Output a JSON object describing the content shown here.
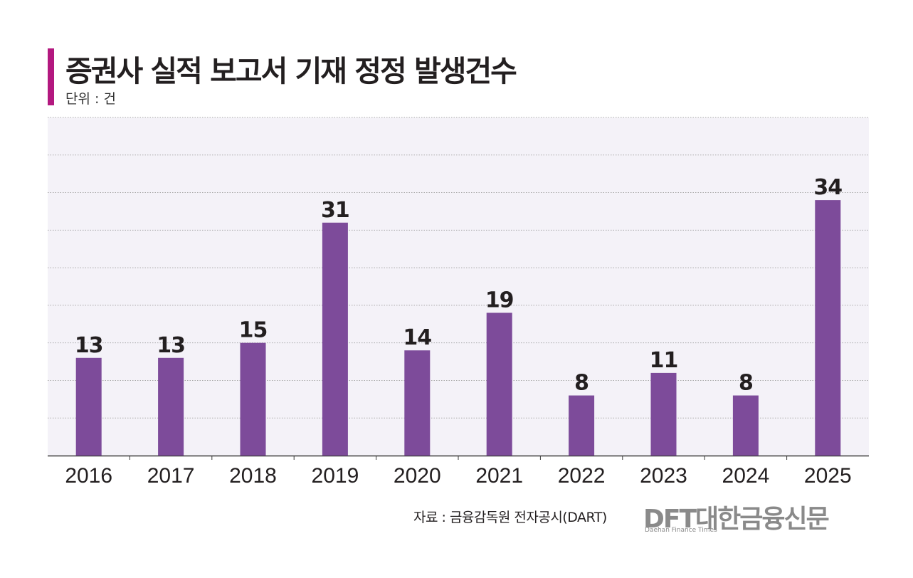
{
  "header": {
    "title": "증권사 실적 보고서 기재 정정 발생건수",
    "unit": "단위 : 건"
  },
  "footer": {
    "source": "자료 : 금융감독원 전자공시(DART)",
    "logo_text": "DFT대한금융신문",
    "logo_subtext": "Daehan Finance Times"
  },
  "colors": {
    "bar": "#7d4b9a",
    "plot_bg": "#f4f2f8",
    "accent": "#b3187f"
  },
  "chart_data": {
    "type": "bar",
    "title": "증권사 실적 보고서 기재 정정 발생건수",
    "unit": "건",
    "categories": [
      "2016",
      "2017",
      "2018",
      "2019",
      "2020",
      "2021",
      "2022",
      "2023",
      "2024",
      "2025"
    ],
    "values": [
      13,
      13,
      15,
      31,
      14,
      19,
      8,
      11,
      8,
      34
    ],
    "ylim": [
      0,
      45
    ],
    "grid": true,
    "gridline_step": 5,
    "xlabel": "",
    "ylabel": ""
  }
}
